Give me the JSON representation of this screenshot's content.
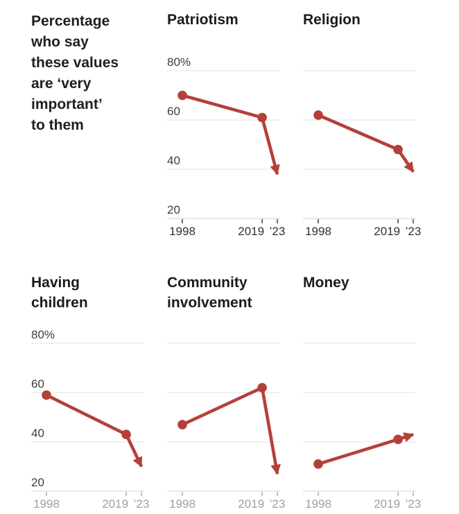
{
  "intro": {
    "text": "Percentage\nwho say\nthese values\nare ‘very\nimportant’\nto them"
  },
  "style": {
    "background": "#ffffff",
    "line_color": "#b4403a",
    "grid_color": "#e3e3e3",
    "baseline_color": "#cfcfcf",
    "y_label_color": "#3d3d3d",
    "x_label_color_top": "#2f2f2f",
    "x_label_color_bottom": "#9e9e9e",
    "tick_color_top": "#3c3c3c",
    "tick_color_bottom": "#b0b0b0",
    "title_color": "#1b1b1b"
  },
  "chart_data": {
    "type": "line",
    "title": "Percentage who say these values are ‘very important’ to them",
    "x": [
      1998,
      2019,
      2023
    ],
    "x_tick_labels": [
      "1998",
      "2019",
      "’23"
    ],
    "xlabel": "",
    "ylabel": "",
    "unit": "percent",
    "ylim": [
      20,
      80
    ],
    "y_gridline_values": [
      80,
      60,
      40,
      20
    ],
    "y_tick_labels": [
      "80%",
      "60",
      "40",
      "20"
    ],
    "grid": true,
    "legend": "none",
    "arrow_on_last_segment": true,
    "series": [
      {
        "name": "Patriotism",
        "title": "Patriotism",
        "values": [
          70,
          61,
          38
        ],
        "y_axis_labels": true
      },
      {
        "name": "Religion",
        "title": "Religion",
        "values": [
          62,
          48,
          39
        ],
        "y_axis_labels": false
      },
      {
        "name": "Having children",
        "title": "Having\nchildren",
        "values": [
          59,
          43,
          30
        ],
        "y_axis_labels": true
      },
      {
        "name": "Community involvement",
        "title": "Community\ninvolvement",
        "values": [
          47,
          62,
          27
        ],
        "y_axis_labels": false
      },
      {
        "name": "Money",
        "title": "Money",
        "values": [
          31,
          41,
          43
        ],
        "y_axis_labels": false
      }
    ]
  }
}
